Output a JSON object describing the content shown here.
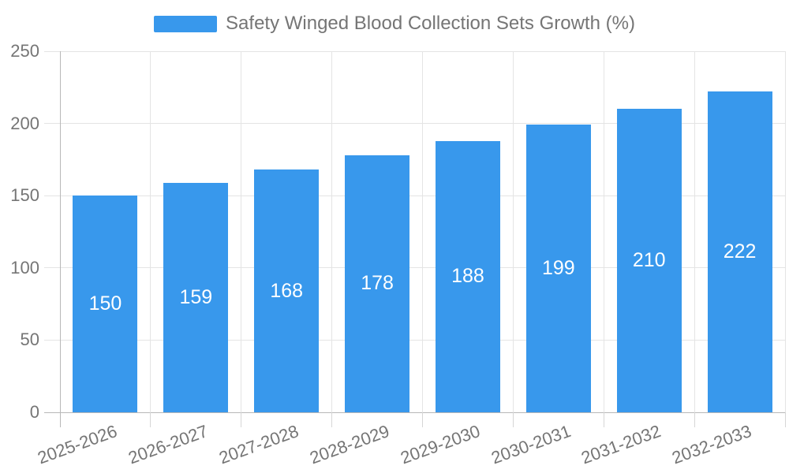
{
  "chart_data": {
    "type": "bar",
    "title": "Safety Winged Blood Collection Sets Growth (%)",
    "categories": [
      "2025-2026",
      "2026-2027",
      "2027-2028",
      "2028-2029",
      "2029-2030",
      "2030-2031",
      "2031-2032",
      "2032-2033"
    ],
    "values": [
      150,
      159,
      168,
      178,
      188,
      199,
      210,
      222
    ],
    "xlabel": "",
    "ylabel": "",
    "ylim": [
      0,
      250
    ],
    "yticks": [
      0,
      50,
      100,
      150,
      200,
      250
    ],
    "grid": true,
    "legend_position": "top-center",
    "value_labels_position": "inside-center",
    "colors": {
      "bar": "#3898ec",
      "value_label": "#ffffff",
      "axis_text": "#757575",
      "gridline": "#e4e4e4",
      "tick": "#d6d6d6",
      "axis_line": "#b8b8b8",
      "background": "#ffffff"
    },
    "x_label_rotation_deg": -20
  }
}
